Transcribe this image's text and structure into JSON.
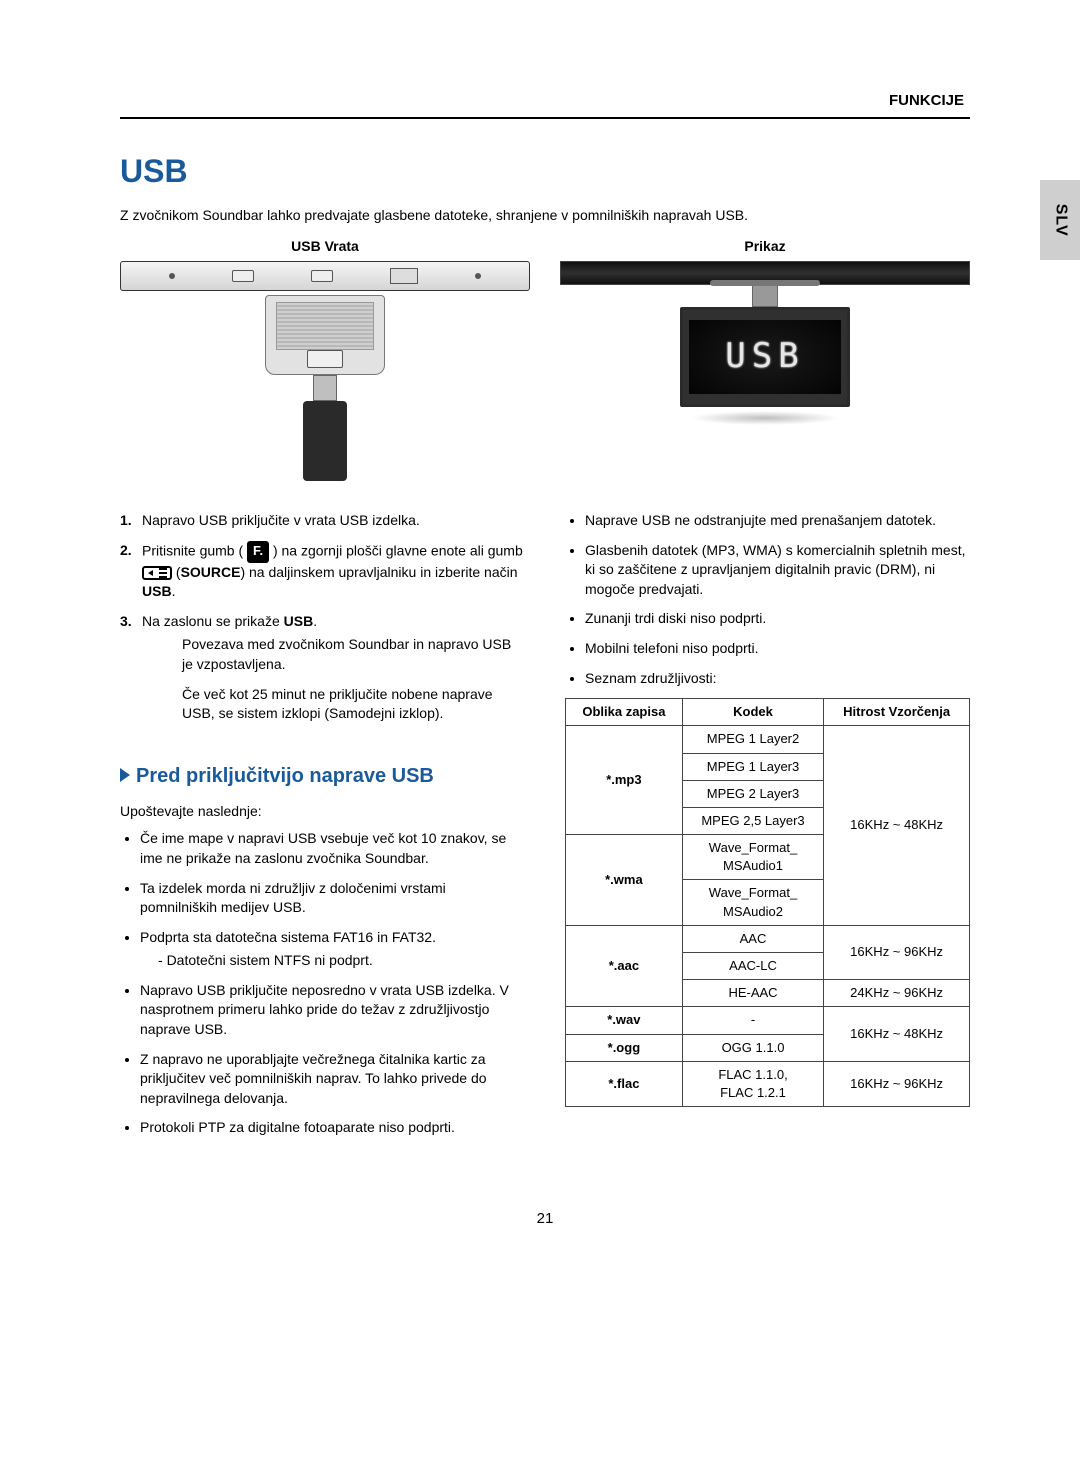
{
  "header": {
    "section_label": "FUNKCIJE"
  },
  "side_tab": "SLV",
  "title": "USB",
  "intro": "Z zvočnikom Soundbar lahko predvajate glasbene datoteke, shranjene v pomnilniških napravah USB.",
  "figures": {
    "left_caption": "USB Vrata",
    "right_caption": "Prikaz",
    "display_text": "USB"
  },
  "steps": [
    {
      "num": "1.",
      "text": "Napravo USB priključite v vrata USB izdelka."
    },
    {
      "num": "2.",
      "pre": "Pritisnite gumb (",
      "post_icon1": ") na zgornji plošči glavne enote ali gumb ",
      "post_icon2": " (",
      "source_label": "SOURCE",
      "post_source": ") na daljinskem upravljalniku in izberite način ",
      "mode_bold": "USB",
      "tail": "."
    },
    {
      "num": "3.",
      "pre": "Na zaslonu se prikaže ",
      "bold": "USB",
      "post": ".",
      "subitems": [
        "Povezava med zvočnikom Soundbar in napravo USB je vzpostavljena.",
        "Če več kot 25 minut ne priključite nobene naprave USB, se sistem izklopi (Samodejni izklop)."
      ]
    }
  ],
  "subheading": "Pred priključitvijo naprave USB",
  "note_intro": "Upoštevajte naslednje:",
  "left_bullets": [
    {
      "text": "Če ime mape v napravi USB vsebuje več kot 10 znakov, se ime ne prikaže na zaslonu zvočnika Soundbar."
    },
    {
      "text": "Ta izdelek morda ni združljiv z določenimi vrstami pomnilniških medijev USB."
    },
    {
      "text": "Podprta sta datotečna sistema FAT16 in FAT32.",
      "sub": [
        "Datotečni sistem NTFS ni podprt."
      ]
    },
    {
      "text": "Napravo USB priključite neposredno v vrata USB izdelka. V nasprotnem primeru lahko pride do težav z združljivostjo naprave USB."
    },
    {
      "text": "Z napravo ne uporabljajte večrežnega čitalnika kartic za priključitev več pomnilniških naprav. To lahko privede do nepravilnega delovanja."
    },
    {
      "text": "Protokoli PTP za digitalne fotoaparate niso podprti."
    }
  ],
  "right_bullets": [
    "Naprave USB ne odstranjujte med prenašanjem datotek.",
    "Glasbenih datotek (MP3, WMA) s komercialnih spletnih mest, ki so zaščitene z upravljanjem digitalnih pravic (DRM), ni mogoče predvajati.",
    "Zunanji trdi diski niso podprti.",
    "Mobilni telefoni niso podprti.",
    "Seznam združljivosti:"
  ],
  "codec_table": {
    "headers": {
      "format": "Oblika zapisa",
      "codec": "Kodek",
      "rate": "Hitrost Vzorčenja"
    },
    "rows": [
      {
        "format": "*.mp3",
        "span": 4,
        "codecs": [
          "MPEG 1 Layer2",
          "MPEG 1 Layer3",
          "MPEG 2 Layer3",
          "MPEG 2,5 Layer3"
        ]
      },
      {
        "format": "*.wma",
        "span": 2,
        "codecs": [
          "Wave_Format_\nMSAudio1",
          "Wave_Format_\nMSAudio2"
        ]
      },
      {
        "format": "*.aac",
        "span": 3,
        "codecs": [
          "AAC",
          "AAC-LC",
          "HE-AAC"
        ]
      },
      {
        "format": "*.wav",
        "span": 1,
        "codecs": [
          "-"
        ]
      },
      {
        "format": "*.ogg",
        "span": 1,
        "codecs": [
          "OGG 1.1.0"
        ]
      },
      {
        "format": "*.flac",
        "span": 1,
        "codecs": [
          "FLAC 1.1.0,\nFLAC 1.2.1"
        ]
      }
    ],
    "rates": [
      {
        "text": "16KHz ~ 48KHz",
        "span": 6
      },
      {
        "text": "16KHz ~ 96KHz",
        "span": 2
      },
      {
        "text": "24KHz ~ 96KHz",
        "span": 1
      },
      {
        "text": "16KHz ~ 48KHz",
        "span": 2
      },
      {
        "text": "16KHz ~ 96KHz",
        "span": 1
      }
    ]
  },
  "page_number": "21",
  "colors": {
    "heading": "#1a5a9a",
    "text": "#000000",
    "side_tab_bg": "#cfcfcf"
  }
}
